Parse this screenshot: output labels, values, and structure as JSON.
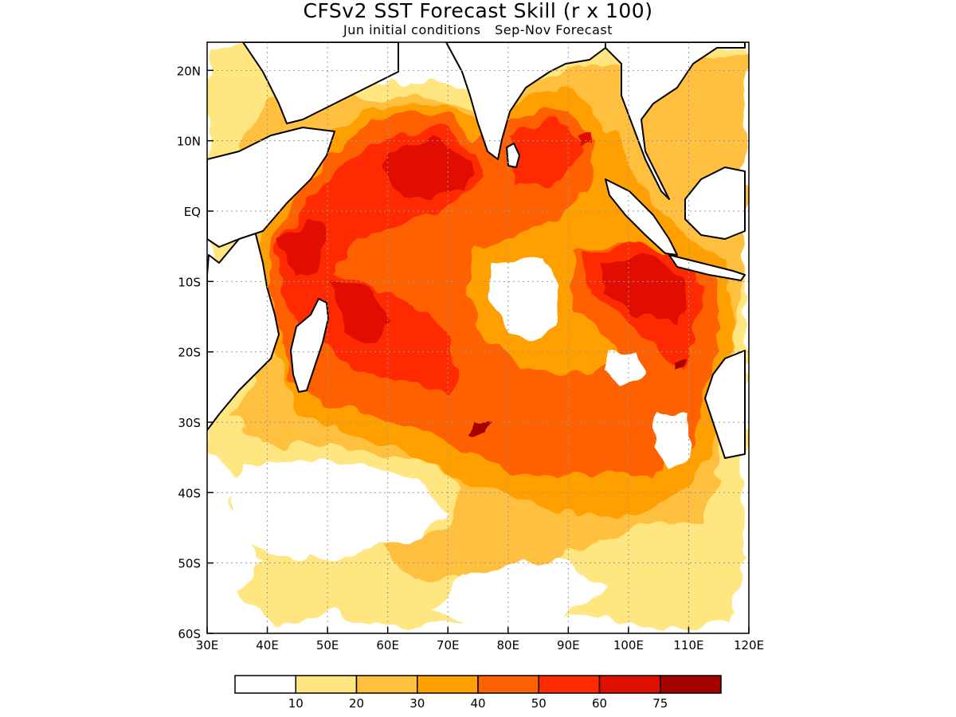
{
  "title": "CFSv2 SST Forecast Skill (r x 100)",
  "subtitle": {
    "initial_conditions": "Jun initial conditions",
    "forecast_period": "Sep-Nov Forecast"
  },
  "map": {
    "lon_range": [
      30,
      120
    ],
    "lat_range": [
      -60,
      24
    ],
    "x_ticks": [
      {
        "value": 30,
        "label": "30E"
      },
      {
        "value": 40,
        "label": "40E"
      },
      {
        "value": 50,
        "label": "50E"
      },
      {
        "value": 60,
        "label": "60E"
      },
      {
        "value": 70,
        "label": "70E"
      },
      {
        "value": 80,
        "label": "80E"
      },
      {
        "value": 90,
        "label": "90E"
      },
      {
        "value": 100,
        "label": "100E"
      },
      {
        "value": 110,
        "label": "110E"
      },
      {
        "value": 120,
        "label": "120E"
      }
    ],
    "y_ticks": [
      {
        "value": 20,
        "label": "20N"
      },
      {
        "value": 10,
        "label": "10N"
      },
      {
        "value": 0,
        "label": "EQ"
      },
      {
        "value": -10,
        "label": "10S"
      },
      {
        "value": -20,
        "label": "20S"
      },
      {
        "value": -30,
        "label": "30S"
      },
      {
        "value": -40,
        "label": "40S"
      },
      {
        "value": -50,
        "label": "50S"
      },
      {
        "value": -60,
        "label": "60S"
      }
    ],
    "gridlines": true
  },
  "colorbar": {
    "colors": [
      "#ffffff",
      "#ffe680",
      "#ffc040",
      "#ffa000",
      "#ff6000",
      "#ff2a00",
      "#e01000",
      "#a50000"
    ],
    "labels": [
      "10",
      "20",
      "30",
      "40",
      "50",
      "60",
      "75"
    ]
  }
}
